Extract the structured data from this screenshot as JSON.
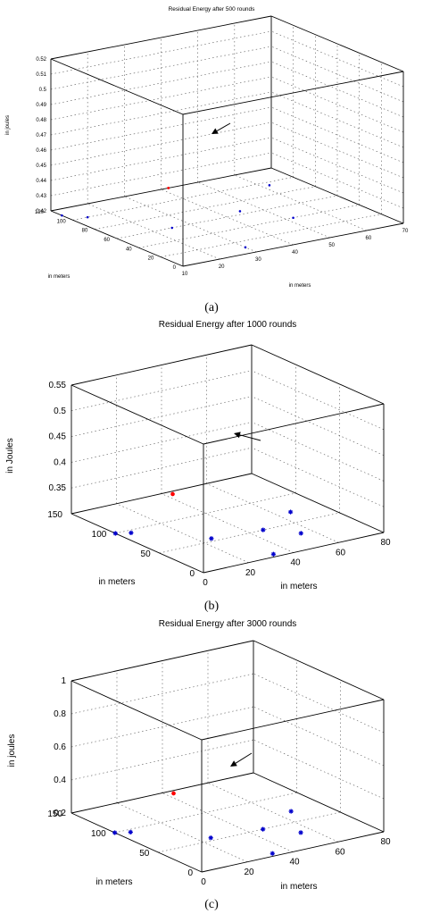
{
  "chart_data": [
    {
      "type": "scatter",
      "title": "Residual Energy after 500 rounds",
      "caption": "(a)",
      "xlabel": "in meters",
      "ylabel": "in meters",
      "zlabel": "in joules",
      "xlim": [
        10,
        70
      ],
      "ylim": [
        0,
        120
      ],
      "zlim": [
        0.42,
        0.52
      ],
      "xticks": [
        "10",
        "20",
        "30",
        "40",
        "50",
        "60",
        "70"
      ],
      "yticks": [
        "0",
        "20",
        "40",
        "60",
        "80",
        "100",
        "120"
      ],
      "zticks": [
        "0.42",
        "0.43",
        "0.44",
        "0.45",
        "0.46",
        "0.47",
        "0.48",
        "0.49",
        "0.5",
        "0.51",
        "0.52"
      ],
      "grid": true,
      "points": [
        {
          "x": 10,
          "y": 110,
          "z": 0.42,
          "color": "#0000cc"
        },
        {
          "x": 14,
          "y": 100,
          "z": 0.42,
          "color": "#0000cc"
        },
        {
          "x": 25,
          "y": 60,
          "z": 0.42,
          "color": "#0000cc"
        },
        {
          "x": 30,
          "y": 10,
          "z": 0.42,
          "color": "#0000cc"
        },
        {
          "x": 45,
          "y": 65,
          "z": 0.42,
          "color": "#0000cc"
        },
        {
          "x": 52,
          "y": 40,
          "z": 0.42,
          "color": "#0000cc"
        },
        {
          "x": 62,
          "y": 95,
          "z": 0.42,
          "color": "#0000cc"
        },
        {
          "x": 42,
          "y": 120,
          "z": 0.42,
          "color": "#ff0000"
        }
      ]
    },
    {
      "type": "scatter",
      "title": "Residual Energy after 1000 rounds",
      "caption": "(b)",
      "xlabel": "in meters",
      "ylabel": "in meters",
      "zlabel": "in Joules",
      "xlim": [
        0,
        80
      ],
      "ylim": [
        0,
        150
      ],
      "zlim": [
        0.3,
        0.55
      ],
      "xticks": [
        "0",
        "20",
        "40",
        "60",
        "80"
      ],
      "yticks": [
        "0",
        "50",
        "100",
        "150"
      ],
      "zticks": [
        "0.35",
        "0.4",
        "0.45",
        "0.5",
        "0.55"
      ],
      "grid": true,
      "points": [
        {
          "x": 0,
          "y": 100,
          "z": 0.3,
          "color": "#0000cc"
        },
        {
          "x": 5,
          "y": 95,
          "z": 0.3,
          "color": "#0000cc"
        },
        {
          "x": 25,
          "y": 55,
          "z": 0.3,
          "color": "#0000cc"
        },
        {
          "x": 33,
          "y": 5,
          "z": 0.3,
          "color": "#0000cc"
        },
        {
          "x": 46,
          "y": 50,
          "z": 0.3,
          "color": "#0000cc"
        },
        {
          "x": 55,
          "y": 30,
          "z": 0.3,
          "color": "#0000cc"
        },
        {
          "x": 66,
          "y": 70,
          "z": 0.3,
          "color": "#0000cc"
        },
        {
          "x": 43,
          "y": 145,
          "z": 0.3,
          "color": "#ff0000"
        }
      ]
    },
    {
      "type": "scatter",
      "title": "Residual Energy after 3000 rounds",
      "caption": "(c)",
      "xlabel": "in meters",
      "ylabel": "in meters",
      "zlabel": "in joules",
      "xlim": [
        0,
        80
      ],
      "ylim": [
        0,
        150
      ],
      "zlim": [
        0.2,
        1
      ],
      "xticks": [
        "0",
        "20",
        "40",
        "60",
        "80"
      ],
      "yticks": [
        "0",
        "50",
        "100",
        "150"
      ],
      "zticks": [
        "0.2",
        "0.4",
        "0.6",
        "0.8",
        "1"
      ],
      "grid": true,
      "points": [
        {
          "x": 0,
          "y": 100,
          "z": 0.2,
          "color": "#0000cc"
        },
        {
          "x": 5,
          "y": 95,
          "z": 0.2,
          "color": "#0000cc"
        },
        {
          "x": 25,
          "y": 55,
          "z": 0.2,
          "color": "#0000cc"
        },
        {
          "x": 33,
          "y": 5,
          "z": 0.2,
          "color": "#0000cc"
        },
        {
          "x": 46,
          "y": 50,
          "z": 0.2,
          "color": "#0000cc"
        },
        {
          "x": 55,
          "y": 30,
          "z": 0.2,
          "color": "#0000cc"
        },
        {
          "x": 66,
          "y": 70,
          "z": 0.2,
          "color": "#0000cc"
        },
        {
          "x": 43,
          "y": 145,
          "z": 0.2,
          "color": "#ff0000"
        }
      ]
    }
  ]
}
